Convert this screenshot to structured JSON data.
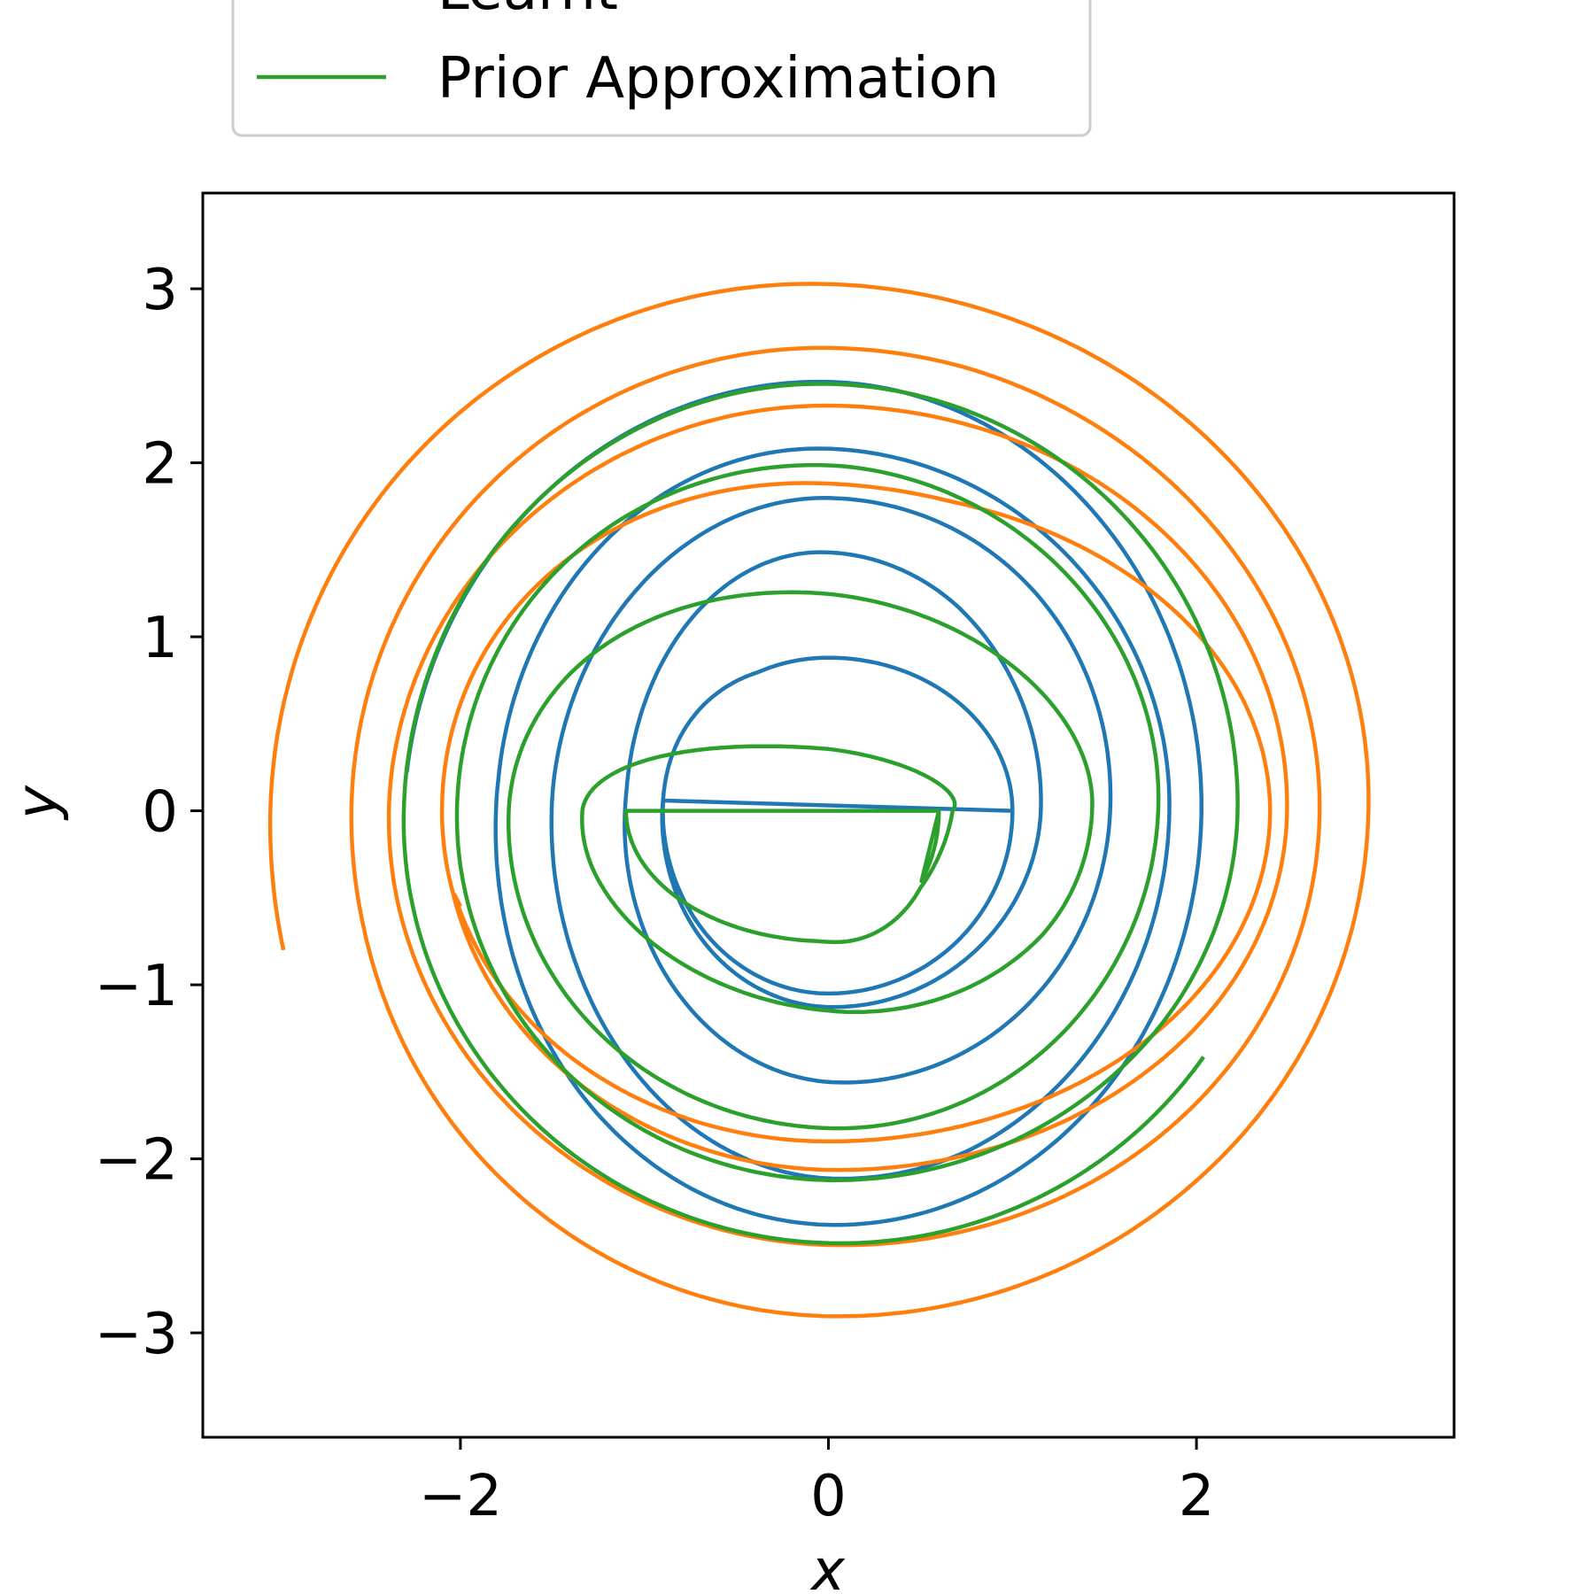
{
  "chart_data": {
    "type": "line",
    "title": "",
    "xlabel": "x",
    "ylabel": "y",
    "xlim": [
      -3.4,
      3.4
    ],
    "ylim": [
      -3.6,
      3.55
    ],
    "xticks": [
      -2,
      0,
      2
    ],
    "yticks": [
      -3,
      -2,
      -1,
      0,
      1,
      2,
      3
    ],
    "xtick_labels": [
      "−2",
      "0",
      "2"
    ],
    "ytick_labels": [
      "−3",
      "−2",
      "−1",
      "0",
      "1",
      "2",
      "3"
    ],
    "grid": false,
    "legend": {
      "placement": "top-left, above plot",
      "entries": [
        {
          "label": "Learnt",
          "color": "#ff7f0e"
        },
        {
          "label": "Prior Approximation",
          "color": "#2ca02c"
        }
      ]
    },
    "series": [
      {
        "color": "#1f77b4",
        "start": [
          -2.3,
          0.2
        ],
        "end": [
          1.0,
          0.0
        ],
        "x_extents_per_loop": [
          [
            -2.3,
            2.1
          ],
          [
            -1.8,
            1.95
          ],
          [
            -1.5,
            1.75
          ],
          [
            -1.1,
            1.3
          ],
          [
            -0.9,
            1.0
          ]
        ],
        "y_extents_per_loop": [
          [
            -2.6,
            2.55
          ],
          [
            -2.35,
            2.25
          ],
          [
            -2.15,
            1.9
          ],
          [
            -1.7,
            1.75
          ],
          [
            -1.2,
            1.45
          ],
          [
            -1.05,
            0.88
          ]
        ]
      },
      {
        "color": "#ff7f0e",
        "name": "Learnt",
        "start": [
          -3.05,
          -0.75
        ],
        "end": [
          -2.0,
          -0.55
        ],
        "x_extents_per_loop": [
          [
            -3.05,
            3.15
          ],
          [
            -2.6,
            2.75
          ],
          [
            -2.4,
            2.6
          ],
          [
            -2.1,
            2.4
          ]
        ],
        "y_extents_per_loop": [
          [
            -3.35,
            3.2
          ],
          [
            -2.95,
            2.8
          ],
          [
            -2.7,
            2.65
          ],
          [
            -2.4,
            2.35
          ],
          [
            -2.1,
            2.3
          ],
          [
            -1.9,
            1.85
          ]
        ]
      },
      {
        "name": "Prior Approximation",
        "color": "#2ca02c",
        "start": [
          1.95,
          -1.3
        ],
        "end": [
          0.6,
          0.0
        ],
        "x_extents_per_loop": [
          [
            -2.45,
            2.45
          ],
          [
            -2.1,
            2.2
          ],
          [
            -1.9,
            1.75
          ],
          [
            -1.5,
            1.4
          ],
          [
            -1.1,
            0.6
          ]
        ],
        "y_extents_per_loop": [
          [
            -2.55,
            2.65
          ],
          [
            -2.2,
            2.4
          ],
          [
            -2.0,
            1.98
          ],
          [
            -1.7,
            1.4
          ],
          [
            -1.0,
            0.58
          ],
          [
            -0.75,
            0.0
          ]
        ]
      }
    ]
  }
}
